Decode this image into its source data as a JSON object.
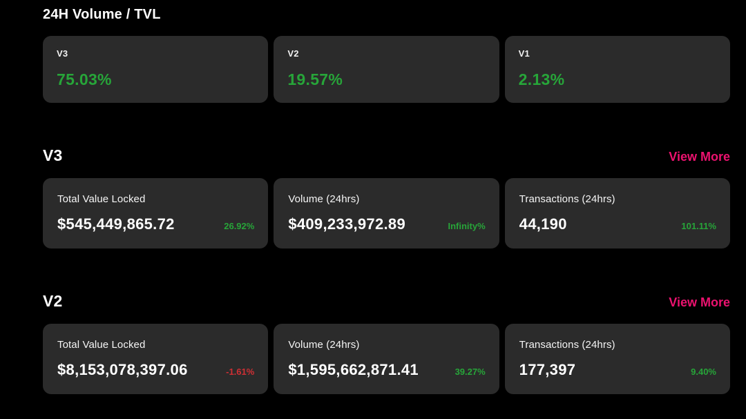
{
  "page": {
    "title": "24H Volume / TVL"
  },
  "colors": {
    "green": "#27a539",
    "red": "#d02f34",
    "pink": "#ec126f",
    "card_bg": "#2b2b2b"
  },
  "overview_cards": [
    {
      "label": "V3",
      "value": "75.03%"
    },
    {
      "label": "V2",
      "value": "19.57%"
    },
    {
      "label": "V1",
      "value": "2.13%"
    }
  ],
  "sections": [
    {
      "title": "V3",
      "view_more_label": "View More",
      "stats": [
        {
          "label": "Total Value Locked",
          "value": "$545,449,865.72",
          "change": "26.92%",
          "direction": "up"
        },
        {
          "label": "Volume (24hrs)",
          "value": "$409,233,972.89",
          "change": "Infinity%",
          "direction": "up"
        },
        {
          "label": "Transactions (24hrs)",
          "value": "44,190",
          "change": "101.11%",
          "direction": "up"
        }
      ]
    },
    {
      "title": "V2",
      "view_more_label": "View More",
      "stats": [
        {
          "label": "Total Value Locked",
          "value": "$8,153,078,397.06",
          "change": "-1.61%",
          "direction": "down"
        },
        {
          "label": "Volume (24hrs)",
          "value": "$1,595,662,871.41",
          "change": "39.27%",
          "direction": "up"
        },
        {
          "label": "Transactions (24hrs)",
          "value": "177,397",
          "change": "9.40%",
          "direction": "up"
        }
      ]
    }
  ]
}
